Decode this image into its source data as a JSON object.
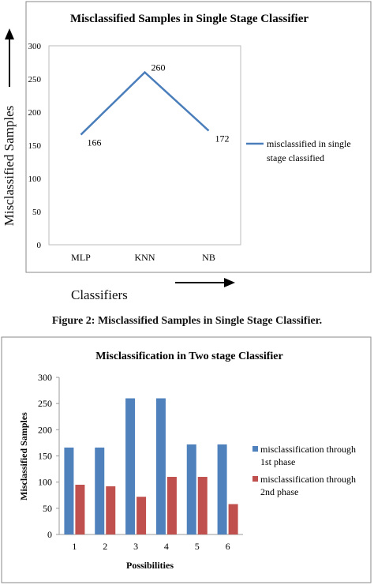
{
  "figure1": {
    "caption": "Figure 2: Misclassified Samples in Single Stage Classifier.",
    "outer_ylabel": "Misclassified Samples",
    "outer_xlabel": "Classifiers",
    "series_color": "#4a7ebb"
  },
  "figure2": {
    "series_colors": [
      "#4f81bd",
      "#c0504d"
    ]
  },
  "chart_data": [
    {
      "type": "line",
      "title": "Misclassified Samples in Single Stage Classifier",
      "categories": [
        "MLP",
        "KNN",
        "NB"
      ],
      "series": [
        {
          "name": "misclassified in single stage classified",
          "values": [
            166,
            260,
            172
          ]
        }
      ],
      "data_labels": [
        "166",
        "260",
        "172"
      ],
      "yticks": [
        "0",
        "50",
        "100",
        "150",
        "200",
        "250",
        "300"
      ],
      "ylim": [
        0,
        300
      ],
      "legend": "right",
      "grid": false
    },
    {
      "type": "bar",
      "title": "Misclassification in Two stage Classifier",
      "xlabel": "Possibilities",
      "ylabel": "Misclassified Samples",
      "categories": [
        "1",
        "2",
        "3",
        "4",
        "5",
        "6"
      ],
      "series": [
        {
          "name": "misclassification through 1st phase",
          "values": [
            166,
            166,
            260,
            260,
            172,
            172
          ]
        },
        {
          "name": "misclassification through 2nd phase",
          "values": [
            95,
            92,
            72,
            110,
            110,
            58
          ]
        }
      ],
      "yticks": [
        "0",
        "50",
        "100",
        "150",
        "200",
        "250",
        "300"
      ],
      "ylim": [
        0,
        300
      ],
      "legend": "right",
      "grid": false
    }
  ]
}
